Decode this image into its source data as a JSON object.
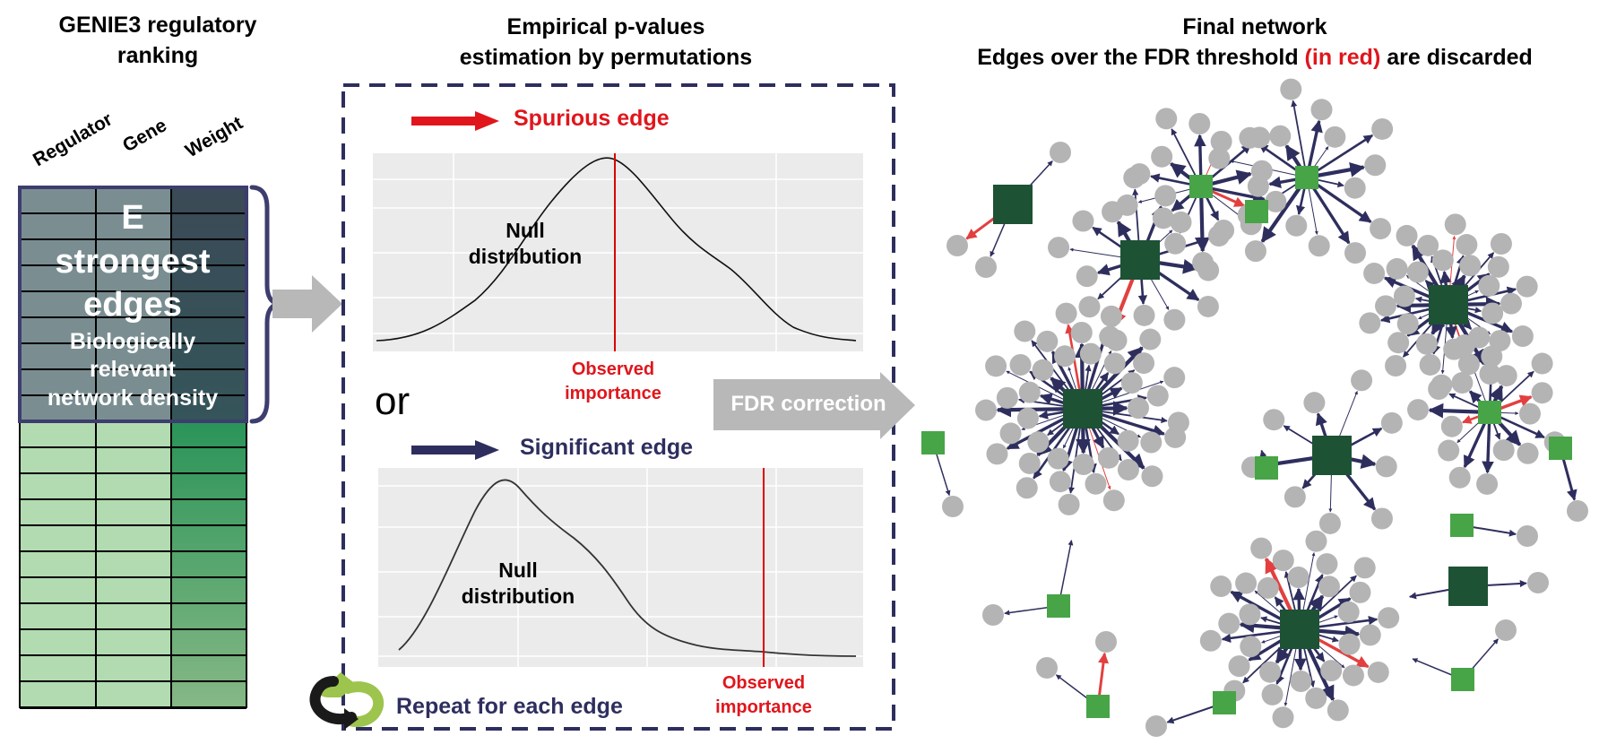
{
  "panel_left": {
    "title_line1": "GENIE3 regulatory",
    "title_line2": "ranking",
    "col_headers": [
      "Regulator",
      "Gene",
      "Weight"
    ],
    "box_e": "E",
    "box_strongest": "strongest",
    "box_edges": "edges",
    "box_sub1": "Biologically",
    "box_sub2": "relevant",
    "box_sub3": "network density"
  },
  "panel_middle": {
    "title_line1": "Empirical p-values",
    "title_line2": "estimation by permutations",
    "spurious_label": "Spurious edge",
    "null_line1": "Null",
    "null_line2": "distribution",
    "observed_line1": "Observed",
    "observed_line2": "importance",
    "or_label": "or",
    "significant_label": "Significant edge",
    "null2_line1": "Null",
    "null2_line2": "distribution",
    "observed2_line1": "Observed",
    "observed2_line2": "importance",
    "repeat_label": "Repeat for each edge"
  },
  "fdr_label": "FDR correction",
  "panel_right": {
    "title_line1": "Final network",
    "title_line2_a": "Edges over the FDR threshold ",
    "title_line2_b": "(in red)",
    "title_line2_c": " are discarded"
  },
  "colors": {
    "navy": "#2e2e5e",
    "red": "#e0161c",
    "edge_red": "#e24040",
    "gray_node": "#b4b4b4",
    "dark_green": "#1d5234",
    "light_green": "#47a447",
    "arrow_gray": "#b8b8b8",
    "plot_bg": "#ebebeb"
  }
}
